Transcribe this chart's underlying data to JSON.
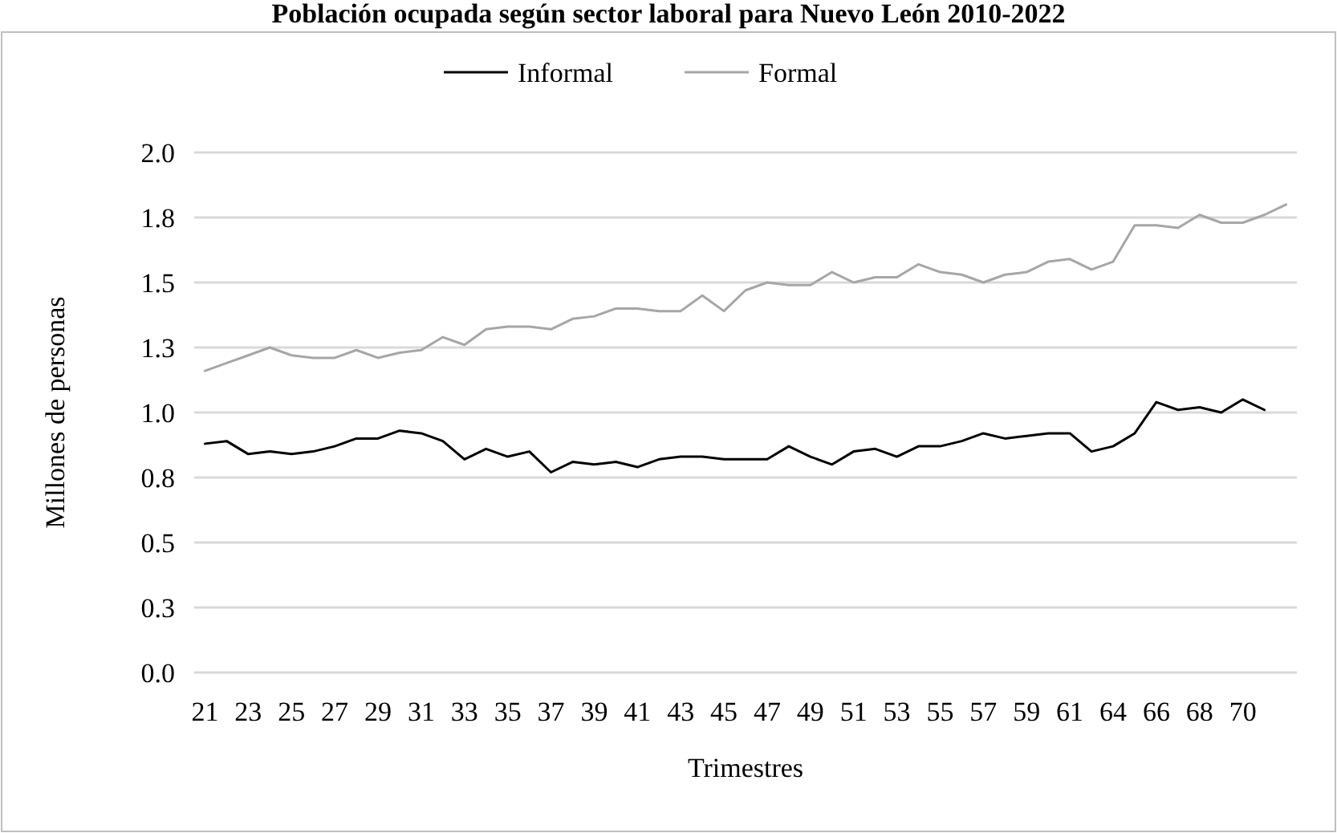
{
  "chart_data": {
    "type": "line",
    "title": "Población ocupada según sector laboral para Nuevo León 2010-2022",
    "xlabel": "Trimestres",
    "ylabel": "Millones de personas",
    "categories": [
      "21",
      null,
      "23",
      null,
      "25",
      null,
      "27",
      null,
      "29",
      null,
      "31",
      null,
      "33",
      null,
      "35",
      null,
      "37",
      null,
      "39",
      null,
      "41",
      null,
      "43",
      null,
      "45",
      null,
      "47",
      null,
      "49",
      null,
      "51",
      null,
      "53",
      null,
      "55",
      null,
      "57",
      null,
      "59",
      null,
      "61",
      null,
      "64",
      null,
      "66",
      null,
      "68",
      null,
      "70",
      null,
      null
    ],
    "series": [
      {
        "name": "Informal",
        "color": "#000000",
        "values": [
          0.88,
          0.89,
          0.84,
          0.85,
          0.84,
          0.85,
          0.87,
          0.9,
          0.9,
          0.93,
          0.92,
          0.89,
          0.82,
          0.86,
          0.83,
          0.85,
          0.77,
          0.81,
          0.8,
          0.81,
          0.79,
          0.82,
          0.83,
          0.83,
          0.82,
          0.82,
          0.82,
          0.87,
          0.83,
          0.8,
          0.85,
          0.86,
          0.83,
          0.87,
          0.87,
          0.89,
          0.92,
          0.9,
          0.91,
          0.92,
          0.92,
          0.85,
          0.87,
          0.92,
          1.04,
          1.01,
          1.02,
          1.0,
          1.05,
          1.01,
          null
        ]
      },
      {
        "name": "Formal",
        "color": "#a6a6a6",
        "values": [
          1.16,
          1.19,
          1.22,
          1.25,
          1.22,
          1.21,
          1.21,
          1.24,
          1.21,
          1.23,
          1.24,
          1.29,
          1.26,
          1.32,
          1.33,
          1.33,
          1.32,
          1.36,
          1.37,
          1.4,
          1.4,
          1.39,
          1.39,
          1.45,
          1.39,
          1.47,
          1.5,
          1.49,
          1.49,
          1.54,
          1.5,
          1.52,
          1.52,
          1.57,
          1.54,
          1.53,
          1.5,
          1.53,
          1.54,
          1.58,
          1.59,
          1.55,
          1.58,
          1.72,
          1.72,
          1.71,
          1.76,
          1.73,
          1.73,
          1.76,
          1.8
        ]
      }
    ],
    "ylim": [
      0,
      2
    ],
    "yticks": [
      {
        "value": 0,
        "label": "0.0"
      },
      {
        "value": 0.25,
        "label": "0.3"
      },
      0.5,
      {
        "value": 0.75,
        "label": "0.8"
      },
      {
        "value": 1,
        "label": "1.0"
      },
      {
        "value": 1.25,
        "label": "1.3"
      },
      1.5,
      {
        "value": 1.75,
        "label": "1.8"
      },
      {
        "value": 2,
        "label": "2.0"
      }
    ],
    "grid": "y",
    "legend": "top",
    "marker": "none",
    "line_style": "solid"
  }
}
